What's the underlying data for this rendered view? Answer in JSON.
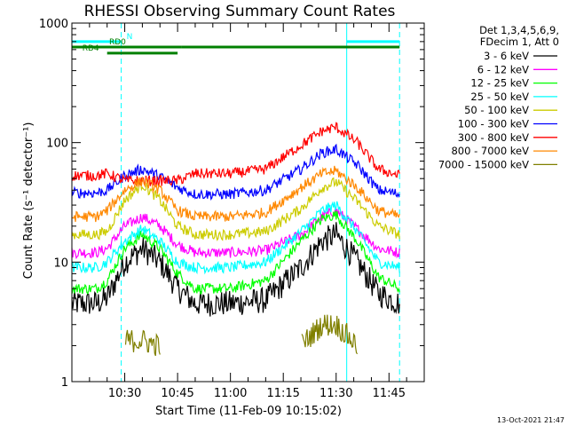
{
  "chart_data": {
    "type": "line",
    "title": "RHESSI Observing Summary Count Rates",
    "xlabel": "Start Time (11-Feb-09 10:15:02)",
    "ylabel": "Count Rate (s⁻¹ detector⁻¹)",
    "yscale": "log",
    "ylim": [
      1,
      1000
    ],
    "xlim_minutes_from_10_00": [
      15,
      115
    ],
    "x_ticks": [
      "10:30",
      "10:45",
      "11:00",
      "11:15",
      "11:30",
      "11:45"
    ],
    "y_ticks": [
      "1",
      "10",
      "100",
      "1000"
    ],
    "legend_header": [
      "Det 1,3,4,5,6,9,",
      "FDecim 1, Att 0"
    ],
    "legend_placement": "right",
    "x_time_points": [
      "10:15",
      "10:22",
      "10:25",
      "10:30",
      "10:35",
      "10:40",
      "10:45",
      "10:50",
      "11:00",
      "11:10",
      "11:20",
      "11:26",
      "11:30",
      "11:36",
      "11:42",
      "11:48"
    ],
    "series": [
      {
        "name": "3 - 6 keV",
        "color": "#000000",
        "values": [
          4.5,
          4.5,
          5.0,
          10,
          13,
          10,
          6,
          4.5,
          4.5,
          4.8,
          9,
          15,
          17,
          10,
          5.5,
          4.5
        ]
      },
      {
        "name": "6 - 12 keV",
        "color": "#ff00ff",
        "values": [
          12,
          12,
          13,
          20,
          24,
          20,
          14,
          12,
          12,
          12.5,
          17,
          24,
          27,
          19,
          13,
          12
        ]
      },
      {
        "name": "12 - 25 keV",
        "color": "#00ff00",
        "values": [
          6.0,
          6.0,
          7.0,
          13,
          17,
          13,
          8,
          6.0,
          6.0,
          7.0,
          15,
          23,
          25,
          15,
          7.5,
          6.0
        ]
      },
      {
        "name": "25 - 50 keV",
        "color": "#00ffff",
        "values": [
          9.0,
          9.0,
          10,
          15,
          19,
          15,
          10,
          9.0,
          9.0,
          10,
          18,
          27,
          30,
          18,
          10,
          9.0
        ]
      },
      {
        "name": "50 - 100 keV",
        "color": "#cccc00",
        "values": [
          17,
          17,
          18,
          33,
          45,
          33,
          20,
          17,
          17,
          18,
          28,
          42,
          47,
          32,
          20,
          17
        ]
      },
      {
        "name": "100 - 300 keV",
        "color": "#0000ff",
        "values": [
          38,
          38,
          40,
          53,
          60,
          52,
          42,
          37,
          37,
          40,
          60,
          82,
          88,
          65,
          40,
          37
        ]
      },
      {
        "name": "300 - 800 keV",
        "color": "#ff0000",
        "values": [
          53,
          53,
          55,
          48,
          48,
          48,
          48,
          55,
          55,
          60,
          95,
          125,
          135,
          100,
          60,
          53
        ]
      },
      {
        "name": "800 - 7000 keV",
        "color": "#ff8800",
        "values": [
          24,
          24,
          27,
          40,
          48,
          40,
          27,
          24,
          24,
          26,
          42,
          55,
          58,
          42,
          27,
          24
        ]
      },
      {
        "name": "7000 - 15000 keV",
        "color": "#808000",
        "values": [
          null,
          null,
          null,
          2.2,
          2.2,
          2.0,
          null,
          null,
          null,
          null,
          2.0,
          3.0,
          3.0,
          2.0,
          null,
          null
        ]
      }
    ],
    "attenuator_bars": [
      {
        "label": "N",
        "color": "#00ffff",
        "y_level": 700,
        "segments": [
          [
            "10:15",
            "10:29"
          ],
          [
            "11:33",
            "11:48"
          ]
        ]
      },
      {
        "label": "RD0",
        "color": "#008000",
        "y_level": 630,
        "segments": [
          [
            "10:15",
            "10:46"
          ],
          [
            "10:46",
            "11:48"
          ]
        ]
      },
      {
        "label": "RD4",
        "color": "#008000",
        "y_level": 560,
        "segments": [
          [
            "10:25",
            "10:45"
          ]
        ]
      }
    ],
    "vertical_markers": [
      {
        "time": "10:29",
        "color": "#00ffff",
        "style": "dashed"
      },
      {
        "time": "11:33",
        "color": "#00ffff",
        "style": "solid"
      },
      {
        "time": "11:48",
        "color": "#00ffff",
        "style": "dashed"
      }
    ],
    "grid": false
  },
  "timestamp": "13-Oct-2021 21:47"
}
